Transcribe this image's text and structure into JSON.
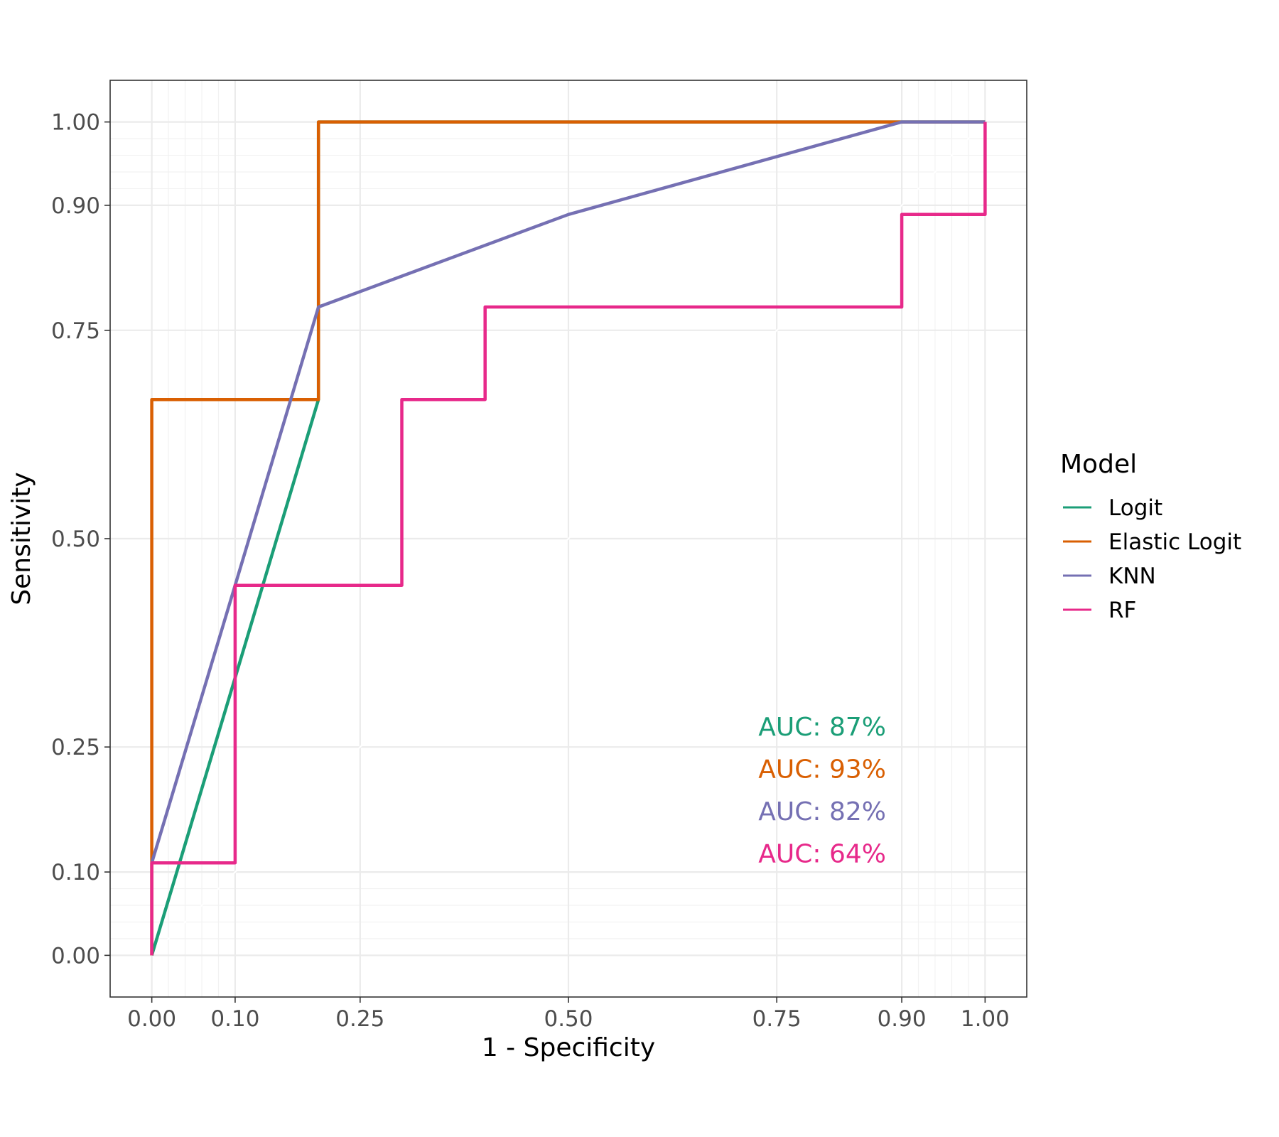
{
  "chart_data": {
    "type": "line",
    "title": "",
    "xlabel": "1 - Specificity",
    "ylabel": "Sensitivity",
    "xlim": [
      -0.05,
      1.05
    ],
    "ylim": [
      -0.05,
      1.05
    ],
    "x_ticks": [
      0,
      0.1,
      0.25,
      0.5,
      0.75,
      0.9,
      1
    ],
    "x_tick_labels": [
      "0.00",
      "0.10",
      "0.25",
      "0.50",
      "0.75",
      "0.90",
      "1.00"
    ],
    "y_ticks": [
      0,
      0.1,
      0.25,
      0.5,
      0.75,
      0.9,
      1
    ],
    "y_tick_labels": [
      "0.00",
      "0.10",
      "0.25",
      "0.50",
      "0.75",
      "0.90",
      "1.00"
    ],
    "grid": true,
    "legend": {
      "title": "Model",
      "position": "right"
    },
    "series": [
      {
        "name": "Logit",
        "color": "#1b9e77",
        "auc_label": "AUC: 87%",
        "points": [
          [
            0,
            0
          ],
          [
            0.1,
            0.333
          ],
          [
            0.2,
            0.667
          ],
          [
            0.2,
            0.778
          ],
          [
            0.2,
            1
          ],
          [
            0.9,
            1
          ],
          [
            1,
            1
          ]
        ]
      },
      {
        "name": "Elastic Logit",
        "color": "#d95f02",
        "auc_label": "AUC: 93%",
        "points": [
          [
            0,
            0
          ],
          [
            0,
            0.667
          ],
          [
            0.2,
            0.667
          ],
          [
            0.2,
            1
          ],
          [
            1,
            1
          ]
        ]
      },
      {
        "name": "KNN",
        "color": "#7570b3",
        "auc_label": "AUC: 82%",
        "points": [
          [
            0,
            0.111
          ],
          [
            0.1,
            0.444
          ],
          [
            0.2,
            0.778
          ],
          [
            0.5,
            0.889
          ],
          [
            0.9,
            1
          ],
          [
            1,
            1
          ]
        ]
      },
      {
        "name": "RF",
        "color": "#e7298a",
        "auc_label": "AUC: 64%",
        "points": [
          [
            0,
            0
          ],
          [
            0,
            0.111
          ],
          [
            0.1,
            0.111
          ],
          [
            0.1,
            0.444
          ],
          [
            0.3,
            0.444
          ],
          [
            0.3,
            0.667
          ],
          [
            0.4,
            0.667
          ],
          [
            0.4,
            0.778
          ],
          [
            0.9,
            0.778
          ],
          [
            0.9,
            0.889
          ],
          [
            1,
            0.889
          ],
          [
            1,
            1
          ]
        ]
      }
    ]
  }
}
